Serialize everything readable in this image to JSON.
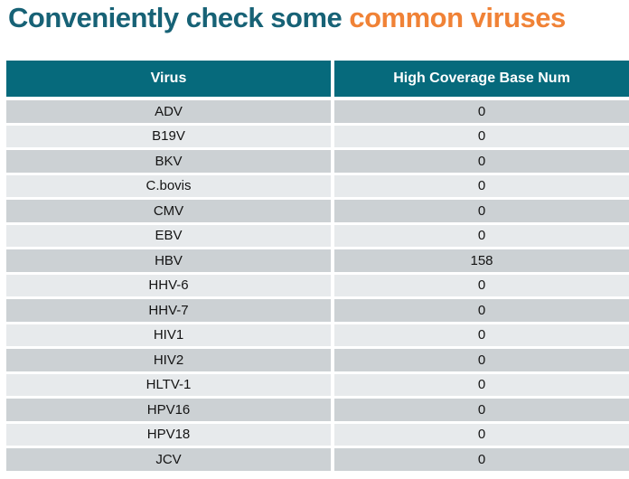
{
  "title": {
    "main": "Conveniently check some ",
    "accent": "common viruses"
  },
  "table": {
    "columns": [
      "Virus",
      "High Coverage Base Num"
    ],
    "rows": [
      {
        "virus": "ADV",
        "value": "0"
      },
      {
        "virus": "B19V",
        "value": "0"
      },
      {
        "virus": "BKV",
        "value": "0"
      },
      {
        "virus": "C.bovis",
        "value": "0"
      },
      {
        "virus": "CMV",
        "value": "0"
      },
      {
        "virus": "EBV",
        "value": "0"
      },
      {
        "virus": "HBV",
        "value": "158"
      },
      {
        "virus": "HHV-6",
        "value": "0"
      },
      {
        "virus": "HHV-7",
        "value": "0"
      },
      {
        "virus": "HIV1",
        "value": "0"
      },
      {
        "virus": "HIV2",
        "value": "0"
      },
      {
        "virus": "HLTV-1",
        "value": "0"
      },
      {
        "virus": "HPV16",
        "value": "0"
      },
      {
        "virus": "HPV18",
        "value": "0"
      },
      {
        "virus": "JCV",
        "value": "0"
      }
    ]
  },
  "colors": {
    "title_teal": "#176276",
    "title_orange": "#f08236",
    "header_bg": "#066a7c",
    "header_text": "#ffffff",
    "row_odd_bg": "#ccd1d4",
    "row_even_bg": "#e7eaec",
    "cell_text": "#141414"
  }
}
